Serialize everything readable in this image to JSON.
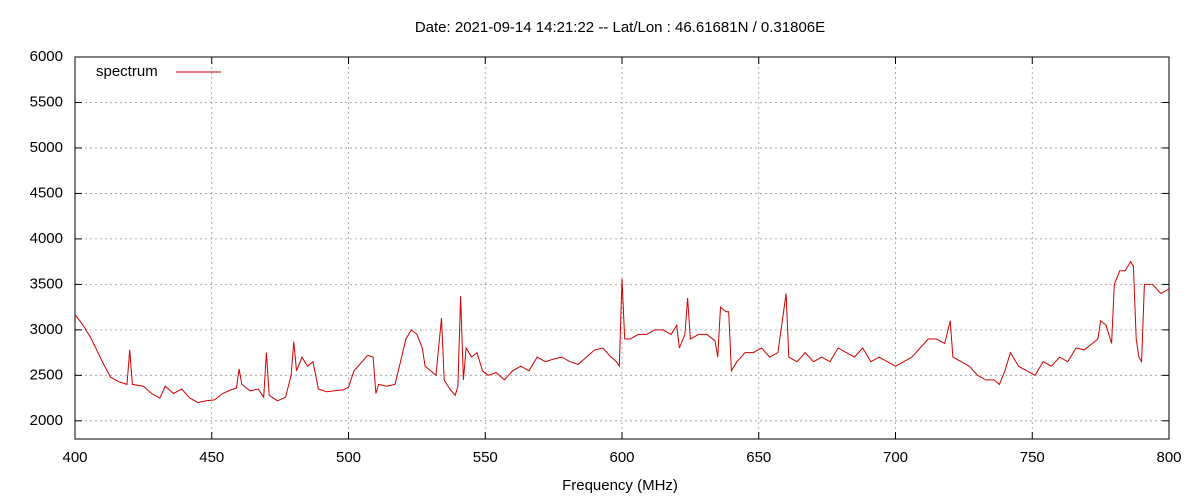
{
  "chart_data": {
    "type": "line",
    "title": "Date: 2021-09-14 14:21:22  --  Lat/Lon : 46.61681N / 0.31806E",
    "x_label": "Frequency (MHz)",
    "x": [
      400,
      403,
      406,
      410,
      413,
      416,
      419,
      420,
      421,
      425,
      428,
      431,
      433,
      436,
      439,
      442,
      445,
      448,
      451,
      454,
      457,
      459,
      460,
      461,
      464,
      467,
      469,
      470,
      471,
      474,
      477,
      479,
      480,
      481,
      483,
      485,
      487,
      489,
      492,
      495,
      498,
      500,
      502,
      505,
      507,
      509,
      510,
      511,
      514,
      517,
      519,
      521,
      523,
      525,
      527,
      528,
      530,
      532,
      534,
      535,
      537,
      539,
      540,
      541,
      542,
      543,
      545,
      547,
      549,
      551,
      554,
      557,
      560,
      563,
      566,
      569,
      572,
      575,
      578,
      581,
      584,
      587,
      590,
      593,
      596,
      598,
      599,
      600,
      601,
      603,
      606,
      609,
      612,
      615,
      618,
      620,
      621,
      623,
      624,
      625,
      628,
      631,
      634,
      635,
      636,
      638,
      639,
      640,
      642,
      645,
      648,
      651,
      654,
      657,
      660,
      661,
      664,
      667,
      670,
      673,
      676,
      679,
      682,
      685,
      688,
      691,
      694,
      697,
      700,
      703,
      706,
      709,
      712,
      715,
      718,
      720,
      721,
      724,
      727,
      730,
      733,
      736,
      738,
      740,
      742,
      745,
      748,
      751,
      754,
      757,
      760,
      763,
      766,
      769,
      772,
      774,
      775,
      777,
      779,
      780,
      782,
      784,
      786,
      787,
      788,
      789,
      790,
      791,
      794,
      797,
      800
    ],
    "series": [
      {
        "name": "spectrum",
        "color": "#d00000",
        "values": [
          3170,
          3050,
          2900,
          2650,
          2480,
          2430,
          2400,
          2780,
          2400,
          2380,
          2300,
          2250,
          2380,
          2300,
          2350,
          2250,
          2200,
          2220,
          2230,
          2300,
          2340,
          2360,
          2570,
          2400,
          2330,
          2350,
          2260,
          2750,
          2280,
          2220,
          2260,
          2500,
          2870,
          2550,
          2700,
          2600,
          2650,
          2350,
          2320,
          2330,
          2340,
          2370,
          2550,
          2650,
          2720,
          2700,
          2300,
          2400,
          2380,
          2400,
          2650,
          2900,
          3000,
          2950,
          2800,
          2600,
          2550,
          2500,
          3130,
          2450,
          2350,
          2280,
          2380,
          3370,
          2450,
          2800,
          2700,
          2750,
          2550,
          2500,
          2530,
          2450,
          2550,
          2600,
          2550,
          2700,
          2650,
          2680,
          2700,
          2650,
          2620,
          2700,
          2780,
          2800,
          2700,
          2650,
          2600,
          3560,
          2900,
          2900,
          2950,
          2950,
          3000,
          3000,
          2950,
          3050,
          2800,
          2950,
          3350,
          2900,
          2950,
          2950,
          2880,
          2700,
          3250,
          3200,
          3200,
          2550,
          2650,
          2750,
          2750,
          2800,
          2700,
          2750,
          3400,
          2700,
          2650,
          2750,
          2650,
          2700,
          2650,
          2800,
          2750,
          2700,
          2800,
          2650,
          2700,
          2650,
          2600,
          2650,
          2700,
          2800,
          2900,
          2900,
          2850,
          3100,
          2700,
          2650,
          2600,
          2500,
          2450,
          2450,
          2400,
          2550,
          2750,
          2600,
          2550,
          2500,
          2650,
          2600,
          2700,
          2650,
          2800,
          2780,
          2850,
          2900,
          3100,
          3050,
          2850,
          3500,
          3650,
          3650,
          3750,
          3700,
          2900,
          2700,
          2650,
          3500,
          3500,
          3400,
          3450
        ]
      }
    ],
    "xlim": [
      400,
      800
    ],
    "xticks": [
      400,
      450,
      500,
      550,
      600,
      650,
      700,
      750,
      800
    ],
    "ylim": [
      1800,
      6000
    ],
    "yticks": [
      2000,
      2500,
      3000,
      3500,
      4000,
      4500,
      5000,
      5500,
      6000
    ],
    "grid": true,
    "legend": "top-left"
  }
}
